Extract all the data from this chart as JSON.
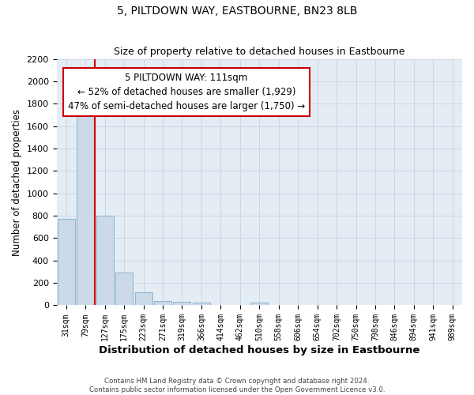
{
  "title": "5, PILTDOWN WAY, EASTBOURNE, BN23 8LB",
  "subtitle": "Size of property relative to detached houses in Eastbourne",
  "xlabel": "Distribution of detached houses by size in Eastbourne",
  "ylabel": "Number of detached properties",
  "bar_labels": [
    "31sqm",
    "79sqm",
    "127sqm",
    "175sqm",
    "223sqm",
    "271sqm",
    "319sqm",
    "366sqm",
    "414sqm",
    "462sqm",
    "510sqm",
    "558sqm",
    "606sqm",
    "654sqm",
    "702sqm",
    "750sqm",
    "798sqm",
    "846sqm",
    "894sqm",
    "941sqm",
    "989sqm"
  ],
  "bar_values": [
    770,
    1690,
    800,
    295,
    115,
    42,
    30,
    22,
    0,
    0,
    25,
    0,
    0,
    0,
    0,
    0,
    0,
    0,
    0,
    0,
    0
  ],
  "bar_color": "#ccd9e8",
  "bar_edge_color": "#7aaac8",
  "vline_x": 1.5,
  "vline_color": "#cc0000",
  "ylim": [
    0,
    2200
  ],
  "yticks": [
    0,
    200,
    400,
    600,
    800,
    1000,
    1200,
    1400,
    1600,
    1800,
    2000,
    2200
  ],
  "annotation_title": "5 PILTDOWN WAY: 111sqm",
  "annotation_line1": "← 52% of detached houses are smaller (1,929)",
  "annotation_line2": "47% of semi-detached houses are larger (1,750) →",
  "annotation_box_color": "#ffffff",
  "annotation_box_edge": "#cc0000",
  "footer1": "Contains HM Land Registry data © Crown copyright and database right 2024.",
  "footer2": "Contains public sector information licensed under the Open Government Licence v3.0.",
  "grid_color": "#c8d4e4",
  "bg_color": "#e4ecf4",
  "fig_bg": "#ffffff"
}
